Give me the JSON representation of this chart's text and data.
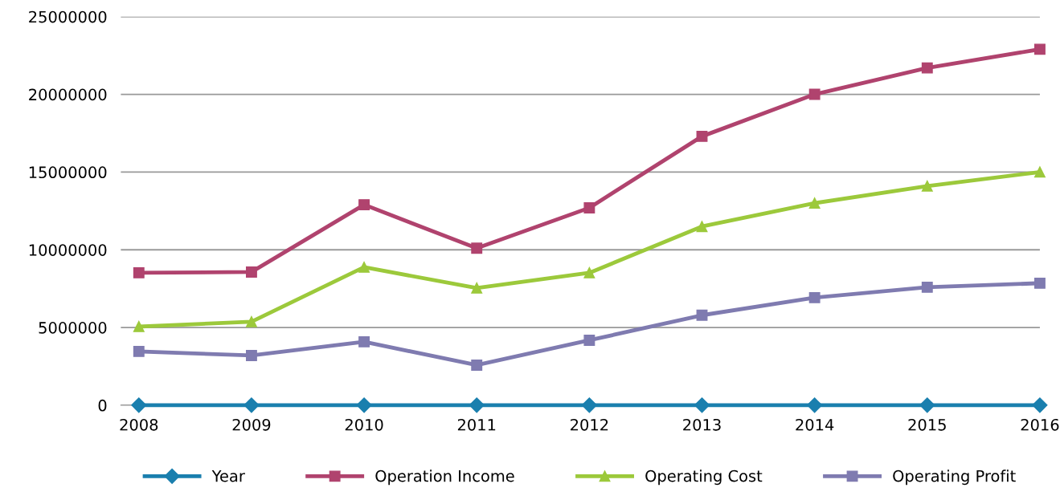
{
  "chart_data": {
    "type": "line",
    "categories": [
      "2008",
      "2009",
      "2010",
      "2011",
      "2012",
      "2013",
      "2014",
      "2015",
      "2016"
    ],
    "series": [
      {
        "name": "Year",
        "color": "#1a7fae",
        "marker": "diamond",
        "values": [
          2008,
          2009,
          2010,
          2011,
          2012,
          2013,
          2014,
          2015,
          2016
        ]
      },
      {
        "name": "Operation Income",
        "color": "#b0436e",
        "marker": "square",
        "values": [
          8520000,
          8570000,
          12900000,
          10100000,
          12700000,
          17300000,
          20000000,
          21700000,
          22900000
        ]
      },
      {
        "name": "Operating Cost",
        "color": "#9cc93b",
        "marker": "triangle",
        "values": [
          5060000,
          5370000,
          8880000,
          7540000,
          8520000,
          11500000,
          13000000,
          14100000,
          15000000
        ]
      },
      {
        "name": "Operating Profit",
        "color": "#7f7bb0",
        "marker": "square",
        "values": [
          3460000,
          3200000,
          4080000,
          2580000,
          4180000,
          5790000,
          6920000,
          7590000,
          7850000
        ]
      }
    ],
    "ylim": [
      0,
      25000000
    ],
    "yticks": [
      0,
      5000000,
      10000000,
      15000000,
      20000000,
      25000000
    ],
    "grid": "y",
    "legend": "bottom",
    "line_style": "solid"
  }
}
